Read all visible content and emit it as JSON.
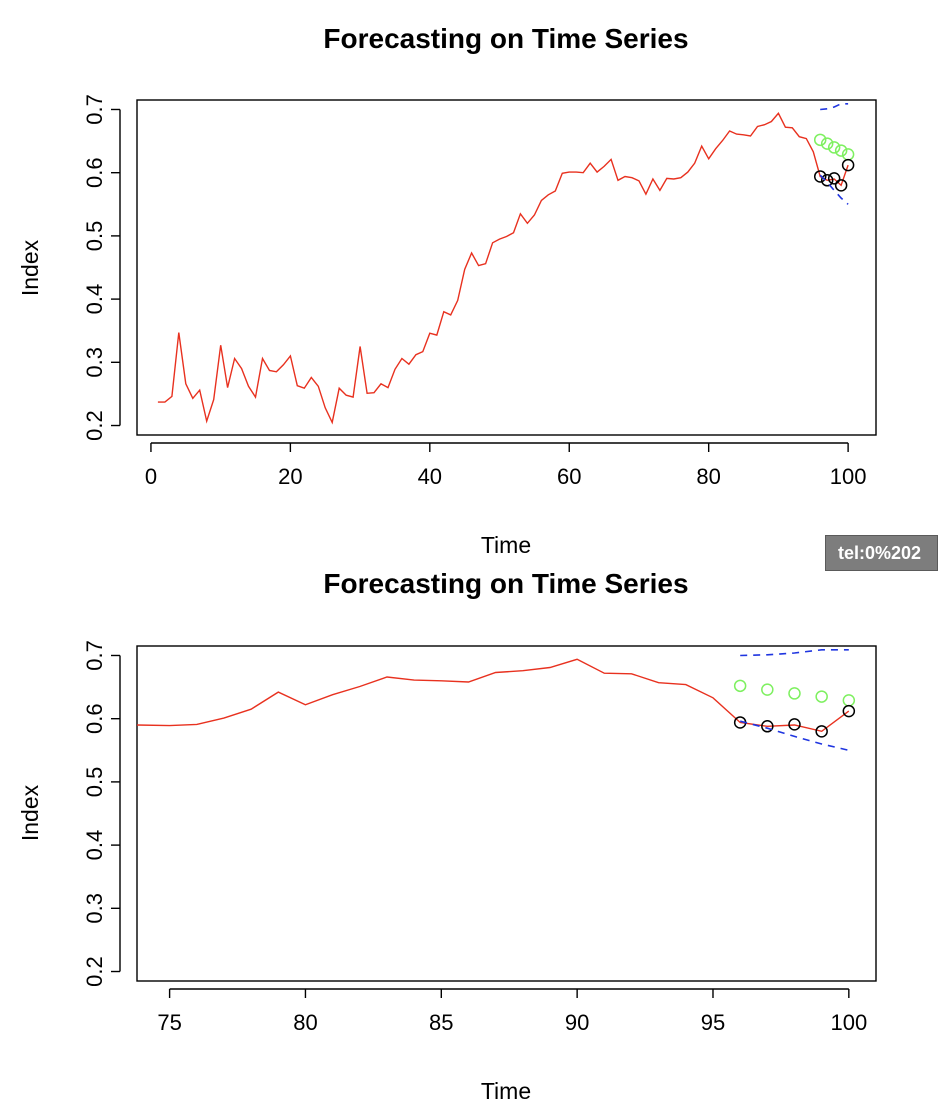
{
  "tooltip": {
    "text": "tel:0%202"
  },
  "colors": {
    "observed": "#e8311f",
    "forecast": "#7ef060",
    "actual": "#000000",
    "bounds": "#1f35e0"
  },
  "chart_data": [
    {
      "type": "line",
      "title": "Forecasting on Time Series",
      "xlabel": "Time",
      "ylabel": "Index",
      "xlim": [
        -2,
        104
      ],
      "ylim": [
        0.185,
        0.715
      ],
      "xticks": [
        0,
        20,
        40,
        60,
        80,
        100
      ],
      "yticks": [
        0.2,
        0.3,
        0.4,
        0.5,
        0.6,
        0.7
      ],
      "grid": false,
      "series": [
        {
          "role": "observed",
          "style": "line",
          "x": [
            1,
            2,
            3,
            4,
            5,
            6,
            7,
            8,
            9,
            10,
            11,
            12,
            13,
            14,
            15,
            16,
            17,
            18,
            19,
            20,
            21,
            22,
            23,
            24,
            25,
            26,
            27,
            28,
            29,
            30,
            31,
            32,
            33,
            34,
            35,
            36,
            37,
            38,
            39,
            40,
            41,
            42,
            43,
            44,
            45,
            46,
            47,
            48,
            49,
            50,
            51,
            52,
            53,
            54,
            55,
            56,
            57,
            58,
            59,
            60,
            61,
            62,
            63,
            64,
            65,
            66,
            67,
            68,
            69,
            70,
            71,
            72,
            73,
            74,
            75,
            76,
            77,
            78,
            79,
            80,
            81,
            82,
            83,
            84,
            85,
            86,
            87,
            88,
            89,
            90,
            91,
            92,
            93,
            94,
            95,
            96,
            97,
            98,
            99,
            100
          ],
          "y": [
            0.237,
            0.237,
            0.246,
            0.347,
            0.266,
            0.243,
            0.256,
            0.207,
            0.241,
            0.327,
            0.26,
            0.306,
            0.29,
            0.262,
            0.245,
            0.306,
            0.287,
            0.285,
            0.296,
            0.31,
            0.263,
            0.259,
            0.276,
            0.262,
            0.228,
            0.205,
            0.259,
            0.248,
            0.245,
            0.325,
            0.251,
            0.252,
            0.266,
            0.26,
            0.289,
            0.306,
            0.297,
            0.312,
            0.317,
            0.346,
            0.343,
            0.38,
            0.375,
            0.398,
            0.447,
            0.473,
            0.453,
            0.456,
            0.489,
            0.495,
            0.499,
            0.505,
            0.535,
            0.52,
            0.533,
            0.556,
            0.565,
            0.571,
            0.599,
            0.601,
            0.601,
            0.6,
            0.615,
            0.601,
            0.61,
            0.621,
            0.588,
            0.594,
            0.592,
            0.587,
            0.566,
            0.59,
            0.572,
            0.591,
            0.59,
            0.592,
            0.601,
            0.615,
            0.642,
            0.622,
            0.638,
            0.651,
            0.666,
            0.661,
            0.66,
            0.658,
            0.673,
            0.676,
            0.681,
            0.694,
            0.672,
            0.671,
            0.657,
            0.654,
            0.633,
            0.594,
            0.588,
            0.59,
            0.58,
            0.612
          ]
        },
        {
          "role": "forecast",
          "style": "points",
          "x": [
            96,
            97,
            98,
            99,
            100
          ],
          "y": [
            0.652,
            0.646,
            0.64,
            0.635,
            0.629
          ]
        },
        {
          "role": "actual",
          "style": "points",
          "x": [
            96,
            97,
            98,
            99,
            100
          ],
          "y": [
            0.594,
            0.588,
            0.591,
            0.58,
            0.612
          ]
        },
        {
          "role": "upper",
          "style": "dashed",
          "x": [
            96,
            97,
            98,
            99,
            100
          ],
          "y": [
            0.7,
            0.701,
            0.704,
            0.709,
            0.709
          ]
        },
        {
          "role": "lower",
          "style": "dashed",
          "x": [
            96,
            97,
            98,
            99,
            100
          ],
          "y": [
            0.596,
            0.585,
            0.572,
            0.56,
            0.55
          ]
        }
      ]
    },
    {
      "type": "line",
      "title": "Forecasting on Time Series",
      "xlabel": "Time",
      "ylabel": "Index",
      "xlim": [
        73.8,
        101.0
      ],
      "ylim": [
        0.185,
        0.715
      ],
      "xticks": [
        75,
        80,
        85,
        90,
        95,
        100
      ],
      "yticks": [
        0.2,
        0.3,
        0.4,
        0.5,
        0.6,
        0.7
      ],
      "grid": false,
      "series": [
        {
          "role": "observed",
          "style": "line",
          "x": [
            73.8,
            75,
            76,
            77,
            78,
            79,
            80,
            81,
            82,
            83,
            84,
            85,
            86,
            87,
            88,
            89,
            90,
            91,
            92,
            93,
            94,
            95,
            96,
            97,
            98,
            99,
            100
          ],
          "y": [
            0.59,
            0.589,
            0.591,
            0.601,
            0.615,
            0.642,
            0.622,
            0.638,
            0.651,
            0.666,
            0.661,
            0.66,
            0.658,
            0.673,
            0.676,
            0.681,
            0.694,
            0.672,
            0.671,
            0.657,
            0.654,
            0.633,
            0.594,
            0.588,
            0.59,
            0.58,
            0.612
          ]
        },
        {
          "role": "forecast",
          "style": "points",
          "x": [
            96,
            97,
            98,
            99,
            100
          ],
          "y": [
            0.652,
            0.646,
            0.64,
            0.635,
            0.629
          ]
        },
        {
          "role": "actual",
          "style": "points",
          "x": [
            96,
            97,
            98,
            99,
            100
          ],
          "y": [
            0.594,
            0.588,
            0.591,
            0.58,
            0.612
          ]
        },
        {
          "role": "upper",
          "style": "dashed",
          "x": [
            96,
            97,
            98,
            99,
            100
          ],
          "y": [
            0.7,
            0.701,
            0.704,
            0.709,
            0.709
          ]
        },
        {
          "role": "lower",
          "style": "dashed",
          "x": [
            96,
            97,
            98,
            99,
            100
          ],
          "y": [
            0.596,
            0.585,
            0.572,
            0.56,
            0.55
          ]
        }
      ]
    }
  ]
}
